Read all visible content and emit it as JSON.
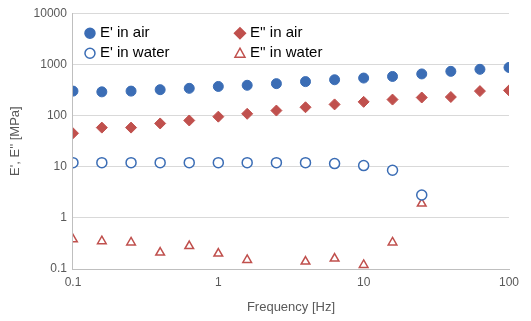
{
  "chart_data": {
    "type": "scatter",
    "x_label": "Frequency [Hz]",
    "y_label": "E', E'' [MPa]",
    "x": [
      0.1,
      0.158,
      0.251,
      0.398,
      0.631,
      1,
      1.58,
      2.51,
      3.98,
      6.31,
      10,
      15.8,
      25.1,
      39.8,
      63.1,
      100
    ],
    "series": [
      {
        "name": "E' in air",
        "color": "#3b6db5",
        "marker": "circle",
        "values": [
          300,
          290,
          300,
          320,
          340,
          370,
          390,
          420,
          460,
          500,
          540,
          580,
          650,
          730,
          800,
          870
        ]
      },
      {
        "name": "E'' in air",
        "color": "#c0504d",
        "marker": "diamond",
        "values": [
          45,
          58,
          58,
          70,
          80,
          95,
          108,
          125,
          145,
          165,
          185,
          205,
          225,
          230,
          300,
          310
        ]
      },
      {
        "name": "E' in water",
        "color": "#3b6db5",
        "marker": "circle-open",
        "values": [
          12,
          12,
          12,
          12,
          12,
          12,
          12,
          12,
          12,
          11.5,
          10.5,
          8.5,
          2.8,
          null,
          null,
          null
        ]
      },
      {
        "name": "E'' in water",
        "color": "#c0504d",
        "marker": "triangle-open",
        "values": [
          0.38,
          0.35,
          0.33,
          0.21,
          0.28,
          0.2,
          0.15,
          null,
          0.14,
          0.16,
          0.12,
          0.33,
          1.9,
          null,
          null,
          null
        ]
      }
    ],
    "log": true,
    "xlim": [
      0.1,
      100
    ],
    "xticks": [
      0.1,
      1,
      10,
      100
    ],
    "ylim": [
      0.1,
      10000
    ],
    "yticks": [
      0.1,
      1,
      10,
      100,
      1000,
      10000
    ],
    "grid": "y",
    "legend": "top-left"
  }
}
